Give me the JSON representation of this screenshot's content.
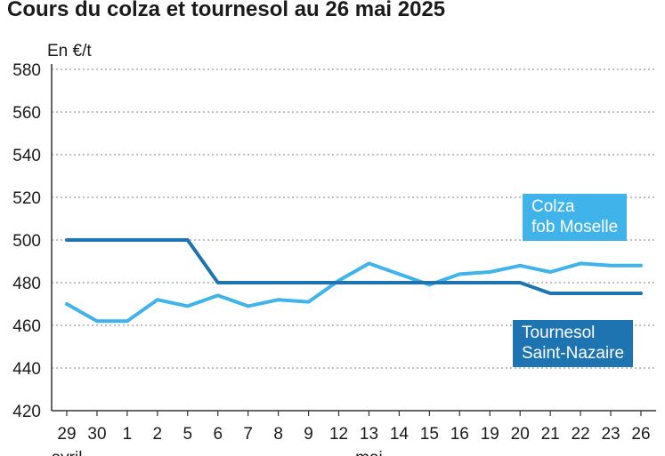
{
  "title": "Cours du colza et tournesol au 26 mai 2025",
  "colors": {
    "colza": "#3fb3ea",
    "tournesol": "#1e74b0",
    "grid": "#9a9a9a",
    "axis": "#333333"
  },
  "chart_data": {
    "type": "line",
    "title": "Cours du colza et tournesol au 26 mai 2025",
    "ylabel": "En €/t",
    "xlabel": "",
    "ylim": [
      420,
      580
    ],
    "yticks": [
      420,
      440,
      460,
      480,
      500,
      520,
      540,
      560,
      580
    ],
    "grid": true,
    "categories": [
      "29",
      "30",
      "1",
      "2",
      "5",
      "6",
      "7",
      "8",
      "9",
      "12",
      "13",
      "14",
      "15",
      "16",
      "19",
      "20",
      "21",
      "22",
      "23",
      "26"
    ],
    "month_labels": [
      "avril",
      "mai"
    ],
    "series": [
      {
        "name": "Colza fob Moselle",
        "legend_lines": [
          "Colza",
          "fob Moselle"
        ],
        "values": [
          470,
          462,
          462,
          472,
          469,
          474,
          469,
          472,
          471,
          481,
          489,
          484,
          479,
          484,
          485,
          488,
          485,
          489,
          488,
          488
        ]
      },
      {
        "name": "Tournesol Saint-Nazaire",
        "legend_lines": [
          "Tournesol",
          "Saint-Nazaire"
        ],
        "values": [
          500,
          500,
          500,
          500,
          500,
          480,
          480,
          480,
          480,
          480,
          480,
          480,
          480,
          480,
          480,
          480,
          475,
          475,
          475,
          475
        ]
      }
    ]
  }
}
